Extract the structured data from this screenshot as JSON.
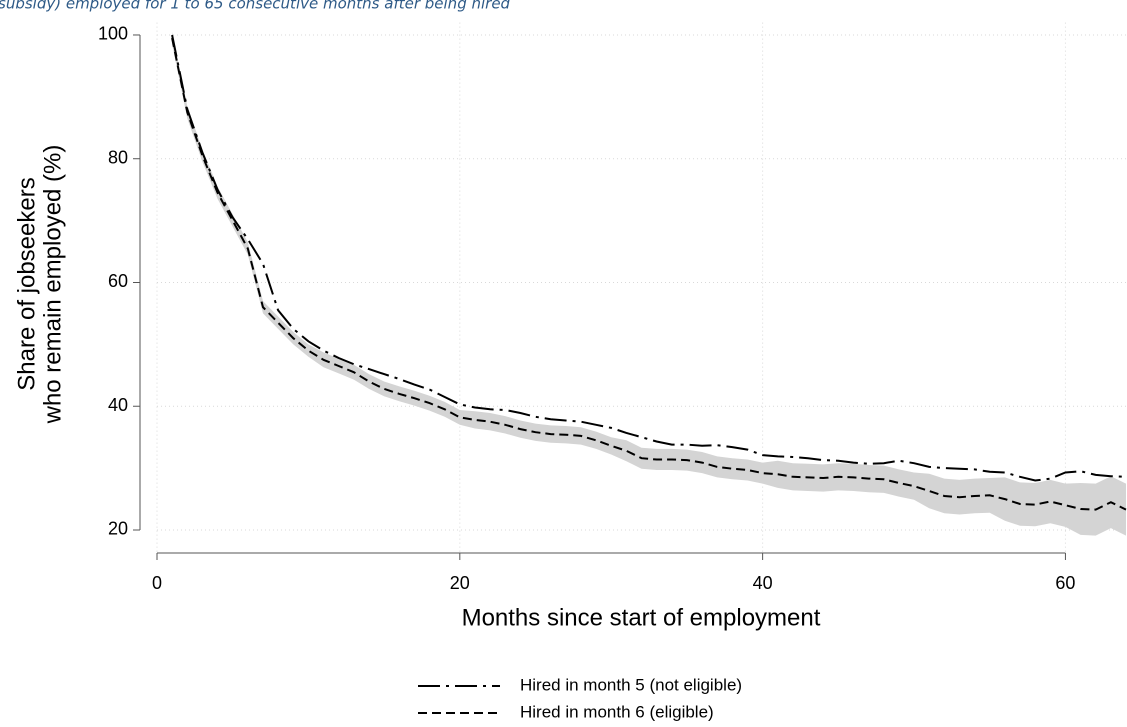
{
  "chart_data": {
    "type": "line",
    "subtitle": "subsidy) employed for 1 to 65 consecutive months after being hired",
    "xlabel": "Months since start of employment",
    "ylabel": [
      "Share of jobseekers",
      "who remain employed (%)"
    ],
    "xlim": [
      0,
      64
    ],
    "ylim": [
      16,
      102
    ],
    "xticks": [
      0,
      20,
      40,
      60
    ],
    "yticks": [
      20,
      40,
      60,
      80,
      100
    ],
    "grid": true,
    "legend": "bottom",
    "x": [
      1,
      2,
      3,
      4,
      5,
      6,
      7,
      8,
      9,
      10,
      11,
      12,
      13,
      14,
      15,
      16,
      17,
      18,
      19,
      20,
      21,
      22,
      23,
      24,
      25,
      26,
      27,
      28,
      29,
      30,
      31,
      32,
      33,
      34,
      35,
      36,
      37,
      38,
      39,
      40,
      41,
      42,
      43,
      44,
      45,
      46,
      47,
      48,
      49,
      50,
      51,
      52,
      53,
      54,
      55,
      56,
      57,
      58,
      59,
      60,
      61,
      62,
      63,
      64
    ],
    "band": {
      "color": "#d4d4d4",
      "lower": [
        98.5,
        86.5,
        79.5,
        73.5,
        69,
        64.5,
        55,
        52.5,
        50,
        48,
        46.3,
        45.3,
        44.3,
        42.8,
        41.6,
        40.8,
        40.1,
        39.3,
        38.3,
        37,
        36.4,
        36.1,
        35.6,
        34.9,
        34.4,
        34.1,
        34,
        33.8,
        33.1,
        32.2,
        31.1,
        29.9,
        29.7,
        29.7,
        29.6,
        29.2,
        28.5,
        28.2,
        28,
        27.5,
        26.8,
        26.4,
        26.3,
        26.2,
        26.4,
        26.3,
        26.1,
        26,
        25.4,
        24.9,
        23.5,
        22.7,
        22.5,
        22.7,
        22.8,
        21.5,
        20.7,
        20.6,
        21.1,
        20.5,
        19.2,
        19.1,
        20.3,
        19.1
      ],
      "upper": [
        100.5,
        88.5,
        81.5,
        75.5,
        71,
        66.5,
        57,
        54.5,
        52,
        50,
        48.7,
        47.7,
        46.7,
        45.2,
        44,
        43.2,
        42.5,
        41.7,
        40.7,
        39.4,
        39.2,
        38.9,
        38.4,
        37.7,
        37.2,
        36.9,
        36.8,
        36.6,
        35.9,
        35,
        34.5,
        33.3,
        33.1,
        33.1,
        33,
        32.6,
        31.9,
        31.6,
        31.4,
        30.9,
        31.2,
        30.8,
        30.7,
        30.6,
        30.8,
        30.7,
        30.5,
        30.4,
        29.8,
        29.3,
        29.1,
        28.3,
        28.1,
        28.3,
        28.4,
        28.5,
        27.7,
        27.6,
        28.1,
        27.5,
        27.6,
        27.5,
        28.7,
        27.5
      ]
    },
    "series": [
      {
        "name": "Hired in month 5 (not eligible)",
        "color": "#000000",
        "line_style": "dash-dot",
        "values": [
          100,
          88,
          81,
          75,
          70.5,
          67,
          63,
          55.5,
          52.5,
          50.5,
          49,
          47.8,
          46.8,
          46,
          45.2,
          44.4,
          43.5,
          42.7,
          41.5,
          40.3,
          39.8,
          39.5,
          39.4,
          38.9,
          38.3,
          37.9,
          37.7,
          37.5,
          37,
          36.5,
          35.7,
          35,
          34.3,
          33.8,
          33.8,
          33.6,
          33.7,
          33.4,
          33,
          32.1,
          31.9,
          31.8,
          31.6,
          31.3,
          31.2,
          30.9,
          30.7,
          30.8,
          31.2,
          30.8,
          30.2,
          30,
          29.9,
          29.8,
          29.4,
          29.3,
          28.6,
          28,
          28.3,
          29.3,
          29.5,
          28.9,
          28.7,
          28.6
        ]
      },
      {
        "name": "Hired in month 6 (eligible)",
        "color": "#000000",
        "line_style": "dashed",
        "values": [
          99.5,
          87.5,
          80.5,
          74.5,
          70,
          65.5,
          56,
          53.5,
          51,
          49,
          47.5,
          46.5,
          45.5,
          44,
          42.8,
          42,
          41.3,
          40.5,
          39.5,
          38.2,
          37.8,
          37.5,
          37,
          36.3,
          35.8,
          35.5,
          35.4,
          35.2,
          34.5,
          33.6,
          32.8,
          31.6,
          31.4,
          31.4,
          31.3,
          30.9,
          30.2,
          29.9,
          29.7,
          29.2,
          29,
          28.6,
          28.5,
          28.4,
          28.6,
          28.5,
          28.3,
          28.2,
          27.6,
          27.1,
          26.3,
          25.5,
          25.3,
          25.5,
          25.6,
          25,
          24.2,
          24.1,
          24.6,
          24,
          23.4,
          23.3,
          24.5,
          23.3
        ]
      }
    ]
  }
}
